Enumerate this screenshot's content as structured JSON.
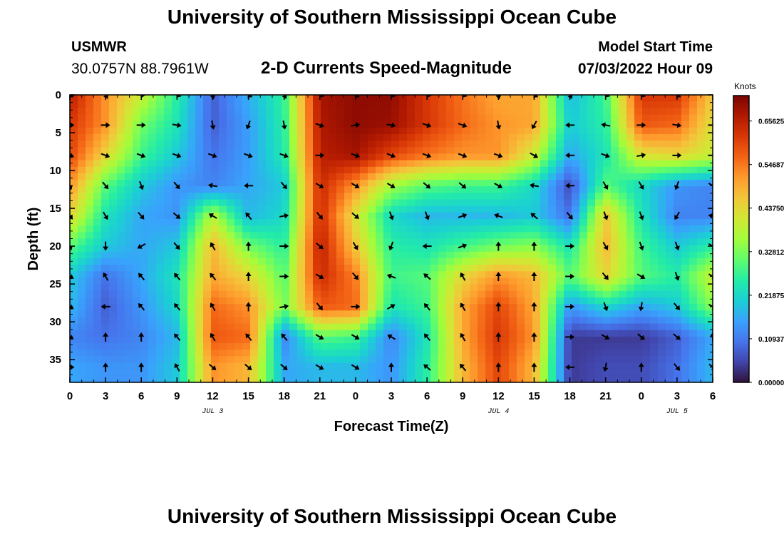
{
  "header": {
    "title": "University of Southern Mississippi Ocean Cube",
    "station_id": "USMWR",
    "station_location": "30.0757N  88.7961W",
    "subtitle": "2-D Currents Speed-Magnitude",
    "model_start_label": "Model Start Time",
    "model_start_value": "07/03/2022 Hour 09"
  },
  "footer": {
    "title": "University of Southern Mississippi Ocean Cube"
  },
  "chart_data": {
    "type": "heatmap",
    "title": "2-D Currents Speed-Magnitude",
    "xlabel": "Forecast Time(Z)",
    "ylabel": "Depth (ft)",
    "x_tick_labels": [
      "0",
      "3",
      "6",
      "9",
      "12",
      "15",
      "18",
      "21",
      "0",
      "3",
      "6",
      "9",
      "12",
      "15",
      "18",
      "21",
      "0",
      "3",
      "6"
    ],
    "x_range_hours": [
      0,
      54
    ],
    "date_labels": [
      {
        "label": "JUL 3",
        "hour": 12
      },
      {
        "label": "JUL 4",
        "hour": 36
      },
      {
        "label": "JUL 5",
        "hour": 51
      }
    ],
    "y_tick_labels": [
      "0",
      "5",
      "10",
      "15",
      "20",
      "25",
      "30",
      "35"
    ],
    "y_range_ft": [
      0,
      38
    ],
    "y_inverted": true,
    "colorbar": {
      "unit": "Knots",
      "tick_labels": [
        "0.65625",
        "0.54687",
        "0.43750",
        "0.32812",
        "0.21875",
        "0.10937",
        "0.00000"
      ],
      "range": [
        0,
        0.72
      ],
      "colors": [
        "#30123b",
        "#4145ab",
        "#4675ed",
        "#39a2fc",
        "#1bcfd4",
        "#24eca6",
        "#61fc6c",
        "#a4fc3b",
        "#d1e834",
        "#f3c63a",
        "#fe9b2d",
        "#f36315",
        "#d93806",
        "#b11901",
        "#7a0403"
      ]
    },
    "vector_columns_hours": [
      0,
      3,
      6,
      9,
      12,
      15,
      18,
      21,
      24,
      27,
      30,
      33,
      36,
      39,
      42,
      45,
      48,
      51,
      54
    ],
    "vector_rows_ft": [
      0,
      4,
      8,
      12,
      16,
      20,
      24,
      28,
      32,
      36
    ],
    "speed_grid_columns_hours": [
      0,
      3,
      6,
      9,
      12,
      15,
      18,
      21,
      24,
      27,
      30,
      33,
      36,
      39,
      42,
      45,
      48,
      51,
      54
    ],
    "speed_grid_rows_ft": [
      0,
      4,
      8,
      12,
      16,
      20,
      24,
      28,
      32,
      36
    ],
    "speed_grid_knots": [
      [
        0.66,
        0.52,
        0.4,
        0.26,
        0.08,
        0.17,
        0.27,
        0.68,
        0.7,
        0.7,
        0.62,
        0.55,
        0.5,
        0.5,
        0.18,
        0.28,
        0.62,
        0.62,
        0.46
      ],
      [
        0.62,
        0.52,
        0.32,
        0.24,
        0.08,
        0.15,
        0.26,
        0.67,
        0.7,
        0.69,
        0.62,
        0.56,
        0.52,
        0.5,
        0.2,
        0.26,
        0.58,
        0.56,
        0.42
      ],
      [
        0.6,
        0.44,
        0.28,
        0.2,
        0.1,
        0.15,
        0.25,
        0.66,
        0.68,
        0.6,
        0.55,
        0.52,
        0.52,
        0.4,
        0.16,
        0.24,
        0.42,
        0.44,
        0.4
      ],
      [
        0.52,
        0.3,
        0.2,
        0.14,
        0.12,
        0.16,
        0.2,
        0.64,
        0.52,
        0.36,
        0.3,
        0.28,
        0.28,
        0.22,
        0.06,
        0.3,
        0.22,
        0.14,
        0.12
      ],
      [
        0.44,
        0.24,
        0.16,
        0.14,
        0.38,
        0.18,
        0.22,
        0.64,
        0.42,
        0.22,
        0.18,
        0.18,
        0.18,
        0.2,
        0.1,
        0.46,
        0.24,
        0.12,
        0.12
      ],
      [
        0.3,
        0.2,
        0.16,
        0.2,
        0.48,
        0.32,
        0.26,
        0.66,
        0.46,
        0.26,
        0.24,
        0.28,
        0.32,
        0.34,
        0.24,
        0.48,
        0.28,
        0.2,
        0.26
      ],
      [
        0.2,
        0.1,
        0.16,
        0.24,
        0.5,
        0.44,
        0.3,
        0.64,
        0.54,
        0.28,
        0.3,
        0.44,
        0.52,
        0.48,
        0.3,
        0.44,
        0.3,
        0.26,
        0.4
      ],
      [
        0.18,
        0.08,
        0.14,
        0.22,
        0.56,
        0.52,
        0.32,
        0.58,
        0.56,
        0.24,
        0.28,
        0.5,
        0.6,
        0.5,
        0.14,
        0.22,
        0.16,
        0.2,
        0.34
      ],
      [
        0.12,
        0.1,
        0.12,
        0.18,
        0.58,
        0.56,
        0.12,
        0.3,
        0.28,
        0.12,
        0.24,
        0.5,
        0.62,
        0.52,
        0.04,
        0.04,
        0.04,
        0.08,
        0.16
      ],
      [
        0.16,
        0.14,
        0.14,
        0.2,
        0.52,
        0.48,
        0.16,
        0.18,
        0.18,
        0.14,
        0.26,
        0.48,
        0.6,
        0.48,
        0.04,
        0.06,
        0.06,
        0.1,
        0.18
      ]
    ],
    "vector_directions_deg": [
      [
        120,
        150,
        90,
        110,
        170,
        120,
        150,
        110,
        120,
        110,
        100,
        110,
        170,
        120,
        150,
        110,
        110,
        120,
        100
      ],
      [
        90,
        90,
        90,
        100,
        170,
        200,
        170,
        110,
        80,
        100,
        110,
        110,
        170,
        210,
        270,
        280,
        90,
        100,
        90
      ],
      [
        110,
        110,
        110,
        110,
        110,
        110,
        110,
        90,
        110,
        110,
        110,
        110,
        110,
        120,
        270,
        110,
        80,
        90,
        90
      ],
      [
        160,
        140,
        160,
        140,
        280,
        270,
        140,
        120,
        120,
        120,
        130,
        130,
        120,
        280,
        270,
        150,
        150,
        200,
        120
      ],
      [
        140,
        150,
        140,
        130,
        300,
        320,
        80,
        140,
        130,
        160,
        160,
        70,
        290,
        310,
        140,
        160,
        160,
        210,
        280
      ],
      [
        160,
        180,
        240,
        140,
        330,
        0,
        90,
        130,
        150,
        200,
        270,
        70,
        0,
        0,
        90,
        150,
        160,
        160,
        120
      ],
      [
        120,
        330,
        320,
        320,
        320,
        0,
        90,
        120,
        140,
        290,
        310,
        330,
        0,
        0,
        90,
        140,
        120,
        160,
        120
      ],
      [
        120,
        270,
        320,
        320,
        330,
        0,
        80,
        140,
        90,
        60,
        320,
        330,
        0,
        0,
        90,
        160,
        190,
        140,
        120
      ],
      [
        120,
        0,
        0,
        320,
        330,
        320,
        320,
        120,
        120,
        300,
        320,
        330,
        0,
        0,
        90,
        120,
        130,
        130,
        0
      ],
      [
        90,
        0,
        0,
        330,
        130,
        130,
        130,
        120,
        120,
        0,
        310,
        320,
        0,
        0,
        270,
        190,
        0,
        140,
        130
      ]
    ],
    "grid": false,
    "legend": "colorbar-right"
  }
}
